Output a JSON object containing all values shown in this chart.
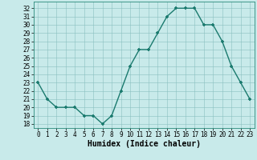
{
  "x": [
    0,
    1,
    2,
    3,
    4,
    5,
    6,
    7,
    8,
    9,
    10,
    11,
    12,
    13,
    14,
    15,
    16,
    17,
    18,
    19,
    20,
    21,
    22,
    23
  ],
  "y": [
    23,
    21,
    20,
    20,
    20,
    19,
    19,
    18,
    19,
    22,
    25,
    27,
    27,
    29,
    31,
    32,
    32,
    32,
    30,
    30,
    28,
    25,
    23,
    21
  ],
  "line_color": "#1a7a6e",
  "marker_color": "#1a7a6e",
  "bg_color": "#c8eaea",
  "grid_color": "#8abfbf",
  "xlabel": "Humidex (Indice chaleur)",
  "xlabel_fontsize": 7,
  "tick_fontsize": 5.5,
  "ylim": [
    17.5,
    32.8
  ],
  "xlim": [
    -0.5,
    23.5
  ],
  "yticks": [
    18,
    19,
    20,
    21,
    22,
    23,
    24,
    25,
    26,
    27,
    28,
    29,
    30,
    31,
    32
  ],
  "xticks": [
    0,
    1,
    2,
    3,
    4,
    5,
    6,
    7,
    8,
    9,
    10,
    11,
    12,
    13,
    14,
    15,
    16,
    17,
    18,
    19,
    20,
    21,
    22,
    23
  ]
}
